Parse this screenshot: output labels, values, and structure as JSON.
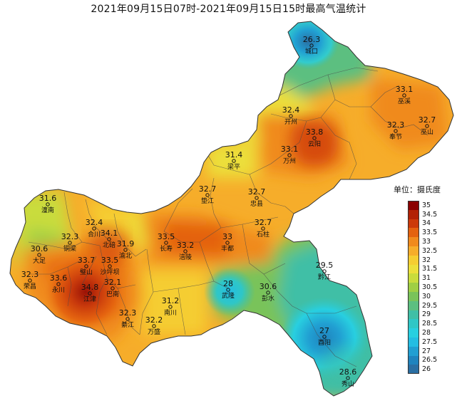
{
  "title": "2021年09月15日07时-2021年09月15日15时最高气温统计",
  "legend": {
    "title": "单位：摄氏度",
    "levels": [
      {
        "label": "35",
        "color": "#8b0000"
      },
      {
        "label": "34.5",
        "color": "#b22205"
      },
      {
        "label": "34",
        "color": "#cc3a0a"
      },
      {
        "label": "33.5",
        "color": "#e4620f"
      },
      {
        "label": "33",
        "color": "#f08a1c"
      },
      {
        "label": "32.5",
        "color": "#f6ad2a"
      },
      {
        "label": "32",
        "color": "#f5cd31"
      },
      {
        "label": "31.5",
        "color": "#ecdf3a"
      },
      {
        "label": "31",
        "color": "#c9dc3c"
      },
      {
        "label": "30.5",
        "color": "#9fcf44"
      },
      {
        "label": "30",
        "color": "#79c35a"
      },
      {
        "label": "29.5",
        "color": "#5cbf80"
      },
      {
        "label": "29",
        "color": "#3fbfa6"
      },
      {
        "label": "28.5",
        "color": "#2fc7c6"
      },
      {
        "label": "28",
        "color": "#28cfe0"
      },
      {
        "label": "27.5",
        "color": "#24bde2"
      },
      {
        "label": "27",
        "color": "#219fd2"
      },
      {
        "label": "26.5",
        "color": "#1f84be"
      },
      {
        "label": "26",
        "color": "#2a6fa3"
      }
    ]
  },
  "stations": [
    {
      "id": "chengkou",
      "name": "城口",
      "value": "26.3",
      "temp": 26.3
    },
    {
      "id": "wuxi",
      "name": "巫溪",
      "value": "33.1",
      "temp": 33.1
    },
    {
      "id": "wushan",
      "name": "巫山",
      "value": "32.7",
      "temp": 32.7
    },
    {
      "id": "kaizhou",
      "name": "开州",
      "value": "32.4",
      "temp": 32.4
    },
    {
      "id": "fengjie",
      "name": "奉节",
      "value": "32.3",
      "temp": 32.3
    },
    {
      "id": "yunyang",
      "name": "云阳",
      "value": "33.8",
      "temp": 33.8
    },
    {
      "id": "wanzhou",
      "name": "万州",
      "value": "33.1",
      "temp": 33.1
    },
    {
      "id": "liangping",
      "name": "梁平",
      "value": "31.4",
      "temp": 31.4
    },
    {
      "id": "dianjiang",
      "name": "垫江",
      "value": "32.7",
      "temp": 32.7
    },
    {
      "id": "zhongxian",
      "name": "忠县",
      "value": "32.7",
      "temp": 32.7
    },
    {
      "id": "shizhu",
      "name": "石柱",
      "value": "32.7",
      "temp": 32.7
    },
    {
      "id": "tongnan",
      "name": "潼南",
      "value": "31.6",
      "temp": 31.6
    },
    {
      "id": "hechuan",
      "name": "合川",
      "value": "32.4",
      "temp": 32.4
    },
    {
      "id": "tongliang",
      "name": "铜梁",
      "value": "32.3",
      "temp": 32.3
    },
    {
      "id": "beibei",
      "name": "北碚",
      "value": "34.1",
      "temp": 34.1
    },
    {
      "id": "yubei",
      "name": "渝北",
      "value": "31.9",
      "temp": 31.9
    },
    {
      "id": "changshou",
      "name": "长寿",
      "value": "33.5",
      "temp": 33.5
    },
    {
      "id": "fuling",
      "name": "涪陵",
      "value": "33.2",
      "temp": 33.2
    },
    {
      "id": "fengdu",
      "name": "丰都",
      "value": "33",
      "temp": 33.0
    },
    {
      "id": "dazu",
      "name": "大足",
      "value": "30.6",
      "temp": 30.6
    },
    {
      "id": "bishan",
      "name": "璧山",
      "value": "33.7",
      "temp": 33.7
    },
    {
      "id": "shapingba",
      "name": "沙坪坝",
      "value": "33.5",
      "temp": 33.5
    },
    {
      "id": "rongchang",
      "name": "荣昌",
      "value": "32.3",
      "temp": 32.3
    },
    {
      "id": "yongchuan",
      "name": "永川",
      "value": "33.6",
      "temp": 33.6
    },
    {
      "id": "jiangjin",
      "name": "江津",
      "value": "34.8",
      "temp": 34.8
    },
    {
      "id": "banan",
      "name": "巴南",
      "value": "32.1",
      "temp": 32.1
    },
    {
      "id": "qijiang",
      "name": "綦江",
      "value": "32.3",
      "temp": 32.3
    },
    {
      "id": "nanchuan",
      "name": "南川",
      "value": "31.2",
      "temp": 31.2
    },
    {
      "id": "wansheng",
      "name": "万盛",
      "value": "32.2",
      "temp": 32.2
    },
    {
      "id": "wulong",
      "name": "武隆",
      "value": "28",
      "temp": 28.0
    },
    {
      "id": "pengshui",
      "name": "彭水",
      "value": "30.6",
      "temp": 30.6
    },
    {
      "id": "qianjiang",
      "name": "黔江",
      "value": "29.5",
      "temp": 29.5
    },
    {
      "id": "youyang",
      "name": "酉阳",
      "value": "27",
      "temp": 27.0
    },
    {
      "id": "xiushan",
      "name": "秀山",
      "value": "28.6",
      "temp": 28.6
    }
  ]
}
